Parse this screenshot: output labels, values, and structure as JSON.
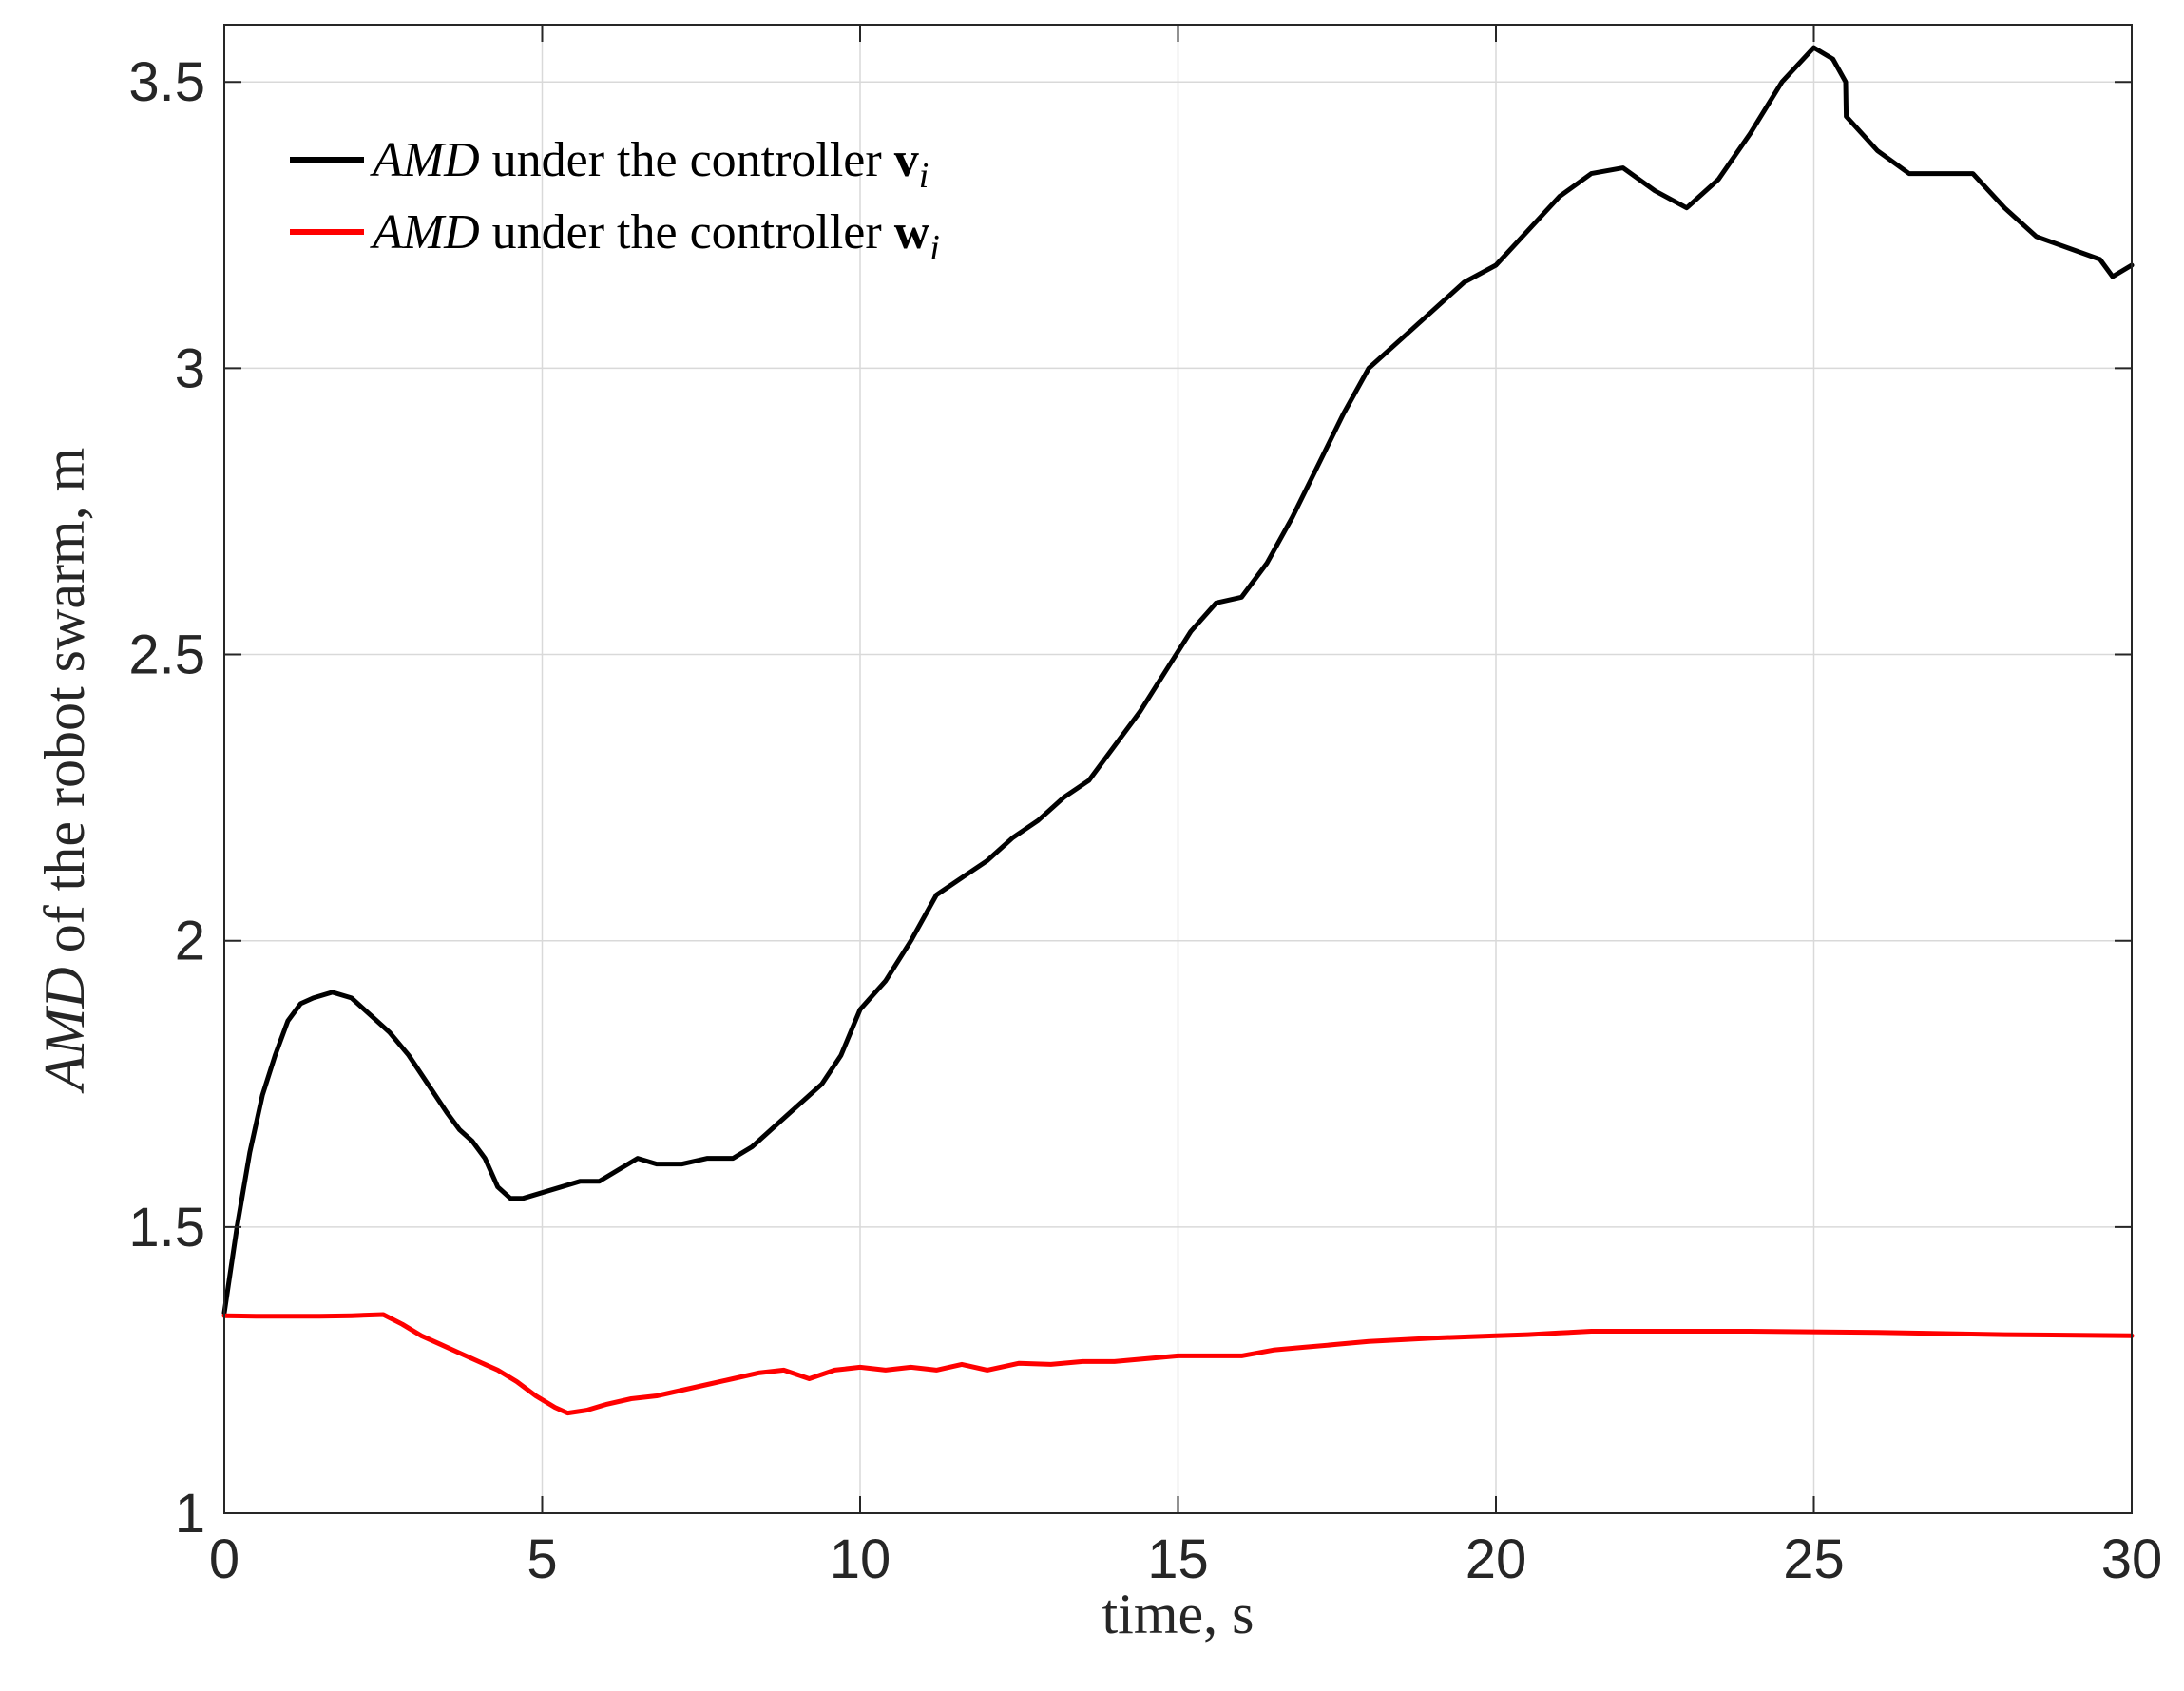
{
  "chart_data": {
    "type": "line",
    "xlabel": "time, s",
    "ylabel": {
      "italic_part": "AMD",
      "rest": " of the robot swarm, m"
    },
    "xlim": [
      0,
      30
    ],
    "ylim": [
      1,
      3.6
    ],
    "x_ticks": [
      0,
      5,
      10,
      15,
      20,
      25,
      30
    ],
    "y_ticks": [
      1,
      1.5,
      2,
      2.5,
      3,
      3.5
    ],
    "x_tick_labels": [
      "0",
      "5",
      "10",
      "15",
      "20",
      "25",
      "30"
    ],
    "y_tick_labels": [
      "1",
      "1.5",
      "2",
      "2.5",
      "3",
      "3.5"
    ],
    "grid": true,
    "legend_placement": "top-left",
    "series": [
      {
        "legend": {
          "italic": "AMD",
          "middle": " under the controller ",
          "bold": "v",
          "sub": "i"
        },
        "color": "#000000",
        "x": [
          0,
          0.2,
          0.4,
          0.6,
          0.8,
          1.0,
          1.2,
          1.4,
          1.7,
          2.0,
          2.3,
          2.6,
          2.9,
          3.2,
          3.5,
          3.7,
          3.9,
          4.1,
          4.3,
          4.5,
          4.7,
          5.0,
          5.3,
          5.6,
          5.9,
          6.2,
          6.5,
          6.8,
          7.2,
          7.6,
          8.0,
          8.3,
          8.6,
          9.0,
          9.4,
          9.7,
          10.0,
          10.4,
          10.8,
          11.2,
          11.6,
          12.0,
          12.4,
          12.8,
          13.2,
          13.6,
          14.0,
          14.4,
          14.8,
          15.2,
          15.6,
          16.0,
          16.4,
          16.8,
          17.2,
          17.6,
          18.0,
          18.5,
          19.0,
          19.5,
          20.0,
          20.5,
          21.0,
          21.5,
          22.0,
          22.5,
          23.0,
          23.5,
          24.0,
          24.5,
          25.0,
          25.3,
          25.5,
          25.51,
          26.0,
          26.5,
          27.0,
          27.5,
          28.0,
          28.5,
          29.0,
          29.5,
          29.7,
          30.0
        ],
        "y": [
          1.35,
          1.5,
          1.63,
          1.73,
          1.8,
          1.86,
          1.89,
          1.9,
          1.91,
          1.9,
          1.87,
          1.84,
          1.8,
          1.75,
          1.7,
          1.67,
          1.65,
          1.62,
          1.57,
          1.55,
          1.55,
          1.56,
          1.57,
          1.58,
          1.58,
          1.6,
          1.62,
          1.61,
          1.61,
          1.62,
          1.62,
          1.64,
          1.67,
          1.71,
          1.75,
          1.8,
          1.88,
          1.93,
          2.0,
          2.08,
          2.11,
          2.14,
          2.18,
          2.21,
          2.25,
          2.28,
          2.34,
          2.4,
          2.47,
          2.54,
          2.59,
          2.6,
          2.66,
          2.74,
          2.83,
          2.92,
          3.0,
          3.05,
          3.1,
          3.15,
          3.18,
          3.24,
          3.3,
          3.34,
          3.35,
          3.31,
          3.28,
          3.33,
          3.41,
          3.5,
          3.56,
          3.54,
          3.5,
          3.44,
          3.38,
          3.34,
          3.34,
          3.34,
          3.28,
          3.23,
          3.21,
          3.19,
          3.16,
          3.18
        ]
      },
      {
        "legend": {
          "italic": "AMD",
          "middle": " under the controller ",
          "bold": "w",
          "sub": "i"
        },
        "color": "#ff0000",
        "x": [
          0,
          0.5,
          1.0,
          1.5,
          2.0,
          2.5,
          2.8,
          3.1,
          3.4,
          3.7,
          4.0,
          4.3,
          4.6,
          4.9,
          5.2,
          5.4,
          5.7,
          6.0,
          6.4,
          6.8,
          7.2,
          7.6,
          8.0,
          8.4,
          8.8,
          9.2,
          9.6,
          10.0,
          10.4,
          10.8,
          11.2,
          11.6,
          12.0,
          12.5,
          13.0,
          13.5,
          14.0,
          14.5,
          15.0,
          15.5,
          16.0,
          16.5,
          17.0,
          17.5,
          18.0,
          18.5,
          19.0,
          19.5,
          20.0,
          20.5,
          21.0,
          21.5,
          22.0,
          24.0,
          26.0,
          28.0,
          30.0
        ],
        "y": [
          1.345,
          1.344,
          1.344,
          1.344,
          1.345,
          1.347,
          1.33,
          1.31,
          1.295,
          1.28,
          1.265,
          1.25,
          1.23,
          1.205,
          1.185,
          1.175,
          1.18,
          1.19,
          1.2,
          1.205,
          1.215,
          1.225,
          1.235,
          1.245,
          1.25,
          1.235,
          1.25,
          1.255,
          1.25,
          1.255,
          1.25,
          1.26,
          1.25,
          1.262,
          1.26,
          1.265,
          1.265,
          1.27,
          1.275,
          1.275,
          1.275,
          1.285,
          1.29,
          1.295,
          1.3,
          1.303,
          1.306,
          1.308,
          1.31,
          1.312,
          1.315,
          1.318,
          1.318,
          1.318,
          1.316,
          1.312,
          1.31
        ]
      }
    ]
  }
}
